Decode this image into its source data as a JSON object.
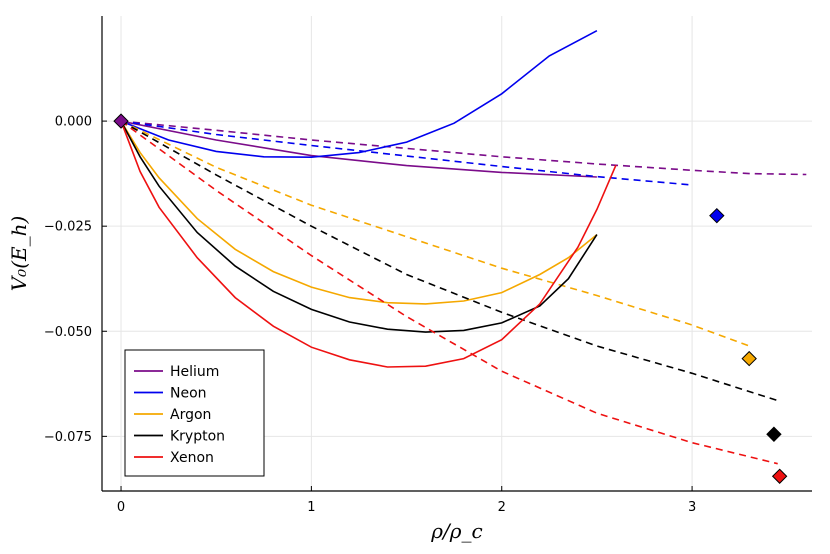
{
  "chart_data": {
    "type": "line",
    "title": "",
    "xlabel": "ρ/ρ_c",
    "ylabel": "V₀(E_h)",
    "xlim": [
      -0.1,
      3.63
    ],
    "ylim": [
      -0.088,
      0.025
    ],
    "x_ticks": [
      0,
      1,
      2,
      3
    ],
    "x_tick_labels": [
      "0",
      "1",
      "2",
      "3"
    ],
    "y_ticks": [
      0.0,
      -0.025,
      -0.05,
      -0.075
    ],
    "y_tick_labels": [
      "0.000",
      "−0.025",
      "−0.050",
      "−0.075"
    ],
    "grid": true,
    "legend_position": "bottom-left",
    "series": [
      {
        "name": "Helium",
        "color": "#7b0c8a",
        "solid": {
          "x": [
            0,
            0.5,
            1.0,
            1.5,
            2.0,
            2.5
          ],
          "y": [
            0,
            -0.0045,
            -0.0082,
            -0.0106,
            -0.0122,
            -0.0133
          ]
        },
        "dashed": {
          "x": [
            0,
            0.5,
            1.0,
            1.5,
            2.0,
            2.5,
            3.0,
            3.3,
            3.6
          ],
          "y": [
            0,
            -0.0022,
            -0.0045,
            -0.0065,
            -0.0085,
            -0.0102,
            -0.0117,
            -0.0125,
            -0.0127
          ]
        },
        "marker": {
          "x": 0,
          "y": 0
        }
      },
      {
        "name": "Neon",
        "color": "#0000ee",
        "solid": {
          "x": [
            0,
            0.25,
            0.5,
            0.75,
            1.0,
            1.25,
            1.5,
            1.75,
            2.0,
            2.25,
            2.5
          ],
          "y": [
            0,
            -0.0045,
            -0.0072,
            -0.0085,
            -0.0086,
            -0.0075,
            -0.005,
            -0.0005,
            0.0065,
            0.0155,
            0.0215
          ]
        },
        "dashed": {
          "x": [
            0,
            0.5,
            1.0,
            1.5,
            2.0,
            2.5,
            3.0
          ],
          "y": [
            0,
            -0.0032,
            -0.0058,
            -0.0083,
            -0.0108,
            -0.0132,
            -0.0152
          ]
        },
        "marker": {
          "x": 3.13,
          "y": -0.0225
        }
      },
      {
        "name": "Argon",
        "color": "#f5a800",
        "solid": {
          "x": [
            0,
            0.1,
            0.2,
            0.4,
            0.6,
            0.8,
            1.0,
            1.2,
            1.4,
            1.6,
            1.8,
            2.0,
            2.2,
            2.35,
            2.5
          ],
          "y": [
            0,
            -0.0075,
            -0.0135,
            -0.0232,
            -0.0305,
            -0.0358,
            -0.0395,
            -0.042,
            -0.0432,
            -0.0435,
            -0.0428,
            -0.0408,
            -0.0365,
            -0.0325,
            -0.027
          ]
        },
        "dashed": {
          "x": [
            0,
            0.5,
            1.0,
            1.5,
            2.0,
            2.5,
            3.0,
            3.3
          ],
          "y": [
            0,
            -0.011,
            -0.02,
            -0.0275,
            -0.035,
            -0.0415,
            -0.0485,
            -0.0535
          ]
        },
        "marker": {
          "x": 3.3,
          "y": -0.0565
        }
      },
      {
        "name": "Krypton",
        "color": "#000000",
        "solid": {
          "x": [
            0,
            0.1,
            0.2,
            0.4,
            0.6,
            0.8,
            1.0,
            1.2,
            1.4,
            1.6,
            1.8,
            2.0,
            2.2,
            2.35,
            2.5
          ],
          "y": [
            0,
            -0.0085,
            -0.0155,
            -0.0265,
            -0.0345,
            -0.0405,
            -0.0448,
            -0.0478,
            -0.0495,
            -0.0502,
            -0.0498,
            -0.048,
            -0.044,
            -0.0375,
            -0.027
          ]
        },
        "dashed": {
          "x": [
            0,
            0.5,
            1.0,
            1.5,
            2.0,
            2.5,
            3.0,
            3.45
          ],
          "y": [
            0,
            -0.0128,
            -0.025,
            -0.0365,
            -0.0455,
            -0.0535,
            -0.06,
            -0.0665
          ]
        },
        "marker": {
          "x": 3.43,
          "y": -0.0745
        }
      },
      {
        "name": "Xenon",
        "color": "#ee1111",
        "solid": {
          "x": [
            0,
            0.1,
            0.2,
            0.4,
            0.6,
            0.8,
            1.0,
            1.2,
            1.4,
            1.6,
            1.8,
            2.0,
            2.2,
            2.4,
            2.5,
            2.6
          ],
          "y": [
            0,
            -0.012,
            -0.0205,
            -0.0325,
            -0.042,
            -0.0488,
            -0.0538,
            -0.0568,
            -0.0585,
            -0.0583,
            -0.0565,
            -0.052,
            -0.0435,
            -0.03,
            -0.021,
            -0.0105
          ]
        },
        "dashed": {
          "x": [
            0,
            0.5,
            1.0,
            1.5,
            2.0,
            2.5,
            3.0,
            3.45
          ],
          "y": [
            0,
            -0.0165,
            -0.032,
            -0.0465,
            -0.0595,
            -0.0695,
            -0.0765,
            -0.0815
          ]
        },
        "marker": {
          "x": 3.46,
          "y": -0.0845
        }
      }
    ]
  }
}
